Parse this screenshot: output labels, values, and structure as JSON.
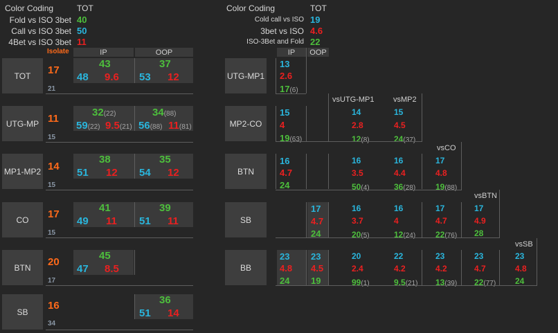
{
  "left_legend": {
    "title": "Color Coding",
    "tot": "TOT",
    "rows": [
      {
        "label": "Fold vs ISO 3bet",
        "value": "40"
      },
      {
        "label": "Call vs ISO 3bet",
        "value": "50"
      },
      {
        "label": "4Bet vs ISO 3bet",
        "value": "11"
      }
    ]
  },
  "right_legend": {
    "title": "Color Coding",
    "tot": "TOT",
    "rows": [
      {
        "label": "Cold call vs ISO",
        "value": "19"
      },
      {
        "label": "3bet vs ISO",
        "value": "4.6"
      },
      {
        "label": "ISO-3Bet and Fold",
        "value": "22"
      }
    ]
  },
  "left_headers": {
    "isolate": "Isolate",
    "ip": "IP",
    "oop": "OOP"
  },
  "left_rows": [
    {
      "pos": "TOT",
      "iso": "17",
      "sub": "21",
      "ip": {
        "g": "43",
        "b": "48",
        "r": "9.6"
      },
      "oop": {
        "g": "37",
        "b": "53",
        "r": "12"
      }
    },
    {
      "pos": "UTG-MP",
      "iso": "11",
      "sub": "15",
      "ip": {
        "g": "32",
        "gs": "(22)",
        "b": "59",
        "bs": "(22)",
        "r": "9.5",
        "rs": "(21)"
      },
      "oop": {
        "g": "34",
        "gs": "(88)",
        "b": "56",
        "bs": "(88)",
        "r": "11",
        "rs": "(81)"
      }
    },
    {
      "pos": "MP1-MP2",
      "iso": "14",
      "sub": "15",
      "ip": {
        "g": "38",
        "b": "51",
        "r": "12"
      },
      "oop": {
        "g": "35",
        "b": "54",
        "r": "12"
      }
    },
    {
      "pos": "CO",
      "iso": "17",
      "sub": "15",
      "ip": {
        "g": "41",
        "b": "49",
        "r": "11"
      },
      "oop": {
        "g": "39",
        "b": "51",
        "r": "11"
      }
    },
    {
      "pos": "BTN",
      "iso": "20",
      "sub": "17",
      "ip": {
        "g": "45",
        "b": "47",
        "r": "8.5"
      }
    },
    {
      "pos": "SB",
      "iso": "16",
      "sub": "34",
      "oop": {
        "g": "36",
        "b": "51",
        "r": "14"
      }
    }
  ],
  "right_headers": {
    "ip": "IP",
    "oop": "OOP",
    "vs": [
      "vsUTG-MP1",
      "vsMP2",
      "vsCO",
      "vsBTN",
      "vsSB"
    ]
  },
  "right_rows": [
    {
      "pos": "UTG-MP1",
      "cols": [
        {
          "b": "13",
          "r": "2.6",
          "g": "17",
          "gs": "(6)"
        }
      ]
    },
    {
      "pos": "MP2-CO",
      "cols": [
        {
          "b": "15",
          "r": "4",
          "g": "19",
          "gs": "(63)"
        },
        {
          "b": "14",
          "r": "2.8",
          "g": "12",
          "gs": "(8)"
        },
        {
          "b": "15",
          "r": "4.5",
          "g": "24",
          "gs": "(37)"
        }
      ]
    },
    {
      "pos": "BTN",
      "cols": [
        {
          "b": "16",
          "r": "4.7",
          "g": "24"
        },
        {
          "b": "16",
          "r": "3.5",
          "g": "50",
          "gs": "(4)"
        },
        {
          "b": "16",
          "r": "4.4",
          "g": "36",
          "gs": "(28)"
        },
        {
          "b": "17",
          "r": "4.8",
          "g": "19",
          "gs": "(88)"
        }
      ]
    },
    {
      "pos": "SB",
      "oop": {
        "b": "17",
        "r": "4.7",
        "g": "24"
      },
      "cols": [
        {
          "b": "16",
          "r": "3.7",
          "g": "20",
          "gs": "(5)"
        },
        {
          "b": "16",
          "r": "4",
          "g": "12",
          "gs": "(24)"
        },
        {
          "b": "17",
          "r": "4.7",
          "g": "22",
          "gs": "(76)"
        },
        {
          "b": "17",
          "r": "4.9",
          "g": "28"
        }
      ]
    },
    {
      "pos": "BB",
      "ip": {
        "b": "23",
        "r": "4.8",
        "g": "24"
      },
      "oop": {
        "b": "23",
        "r": "4.5",
        "g": "19"
      },
      "cols": [
        {
          "b": "20",
          "r": "2.4",
          "g": "99",
          "gs": "(1)"
        },
        {
          "b": "22",
          "r": "4.2",
          "g": "9.5",
          "gs": "(21)"
        },
        {
          "b": "23",
          "r": "4.2",
          "g": "13",
          "gs": "(39)"
        },
        {
          "b": "23",
          "r": "4.7",
          "g": "22",
          "gs": "(77)"
        },
        {
          "b": "23",
          "r": "4.8",
          "g": "24"
        }
      ]
    }
  ]
}
